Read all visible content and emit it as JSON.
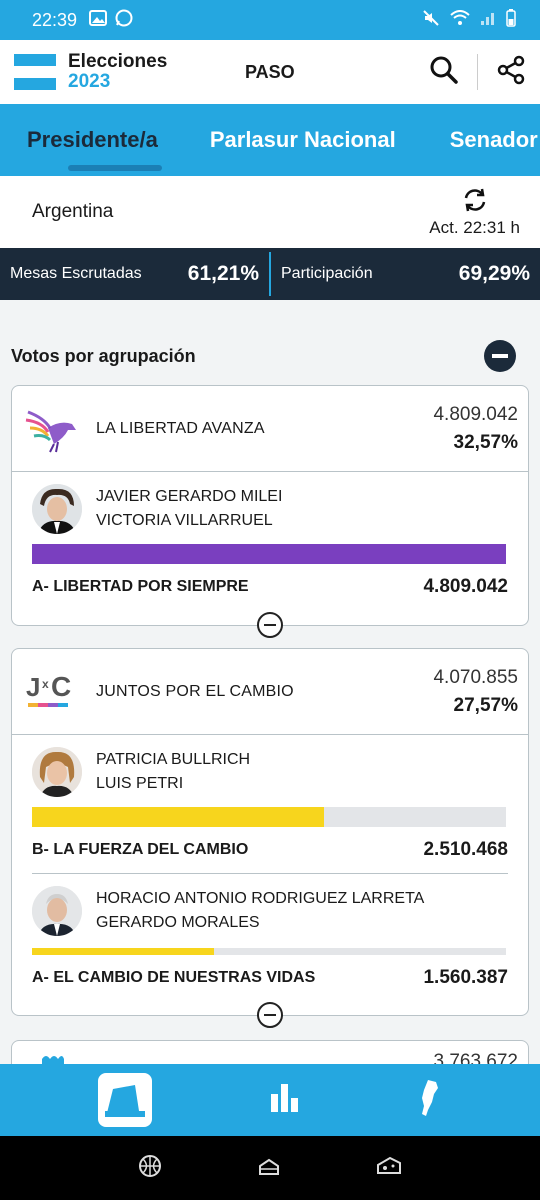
{
  "status": {
    "time": "22:39"
  },
  "header": {
    "brand_line1": "Elecciones",
    "brand_line2": "2023",
    "title": "PASO"
  },
  "tabs": [
    "Presidente/a",
    "Parlasur Nacional",
    "Senador"
  ],
  "region": {
    "name": "Argentina",
    "update": "Act. 22:31 h"
  },
  "stats": {
    "mesas_label": "Mesas Escrutadas",
    "mesas_value": "61,21%",
    "part_label": "Participación",
    "part_value": "69,29%"
  },
  "section": {
    "title": "Votos por agrupación"
  },
  "parties": [
    {
      "name": "LA LIBERTAD AVANZA",
      "votes": "4.809.042",
      "percent": "32,57%",
      "lists": [
        {
          "candidate1": "JAVIER GERARDO MILEI",
          "candidate2": "VICTORIA VILLARRUEL",
          "list_name": "A- LIBERTAD POR SIEMPRE",
          "votes": "4.809.042",
          "share": 1.0,
          "color": "#7a3fbf"
        }
      ]
    },
    {
      "name": "JUNTOS POR EL CAMBIO",
      "votes": "4.070.855",
      "percent": "27,57%",
      "lists": [
        {
          "candidate1": "PATRICIA BULLRICH",
          "candidate2": "LUIS PETRI",
          "list_name": "B- LA FUERZA DEL CAMBIO",
          "votes": "2.510.468",
          "share": 0.617,
          "color": "#f7d51d"
        },
        {
          "candidate1": "HORACIO ANTONIO RODRIGUEZ LARRETA",
          "candidate2": "GERARDO MORALES",
          "list_name": "A- EL CAMBIO DE NUESTRAS VIDAS",
          "votes": "1.560.387",
          "share": 0.383,
          "color": "#f7d51d"
        }
      ]
    }
  ],
  "third_card": {
    "votes": "3.763.672"
  }
}
